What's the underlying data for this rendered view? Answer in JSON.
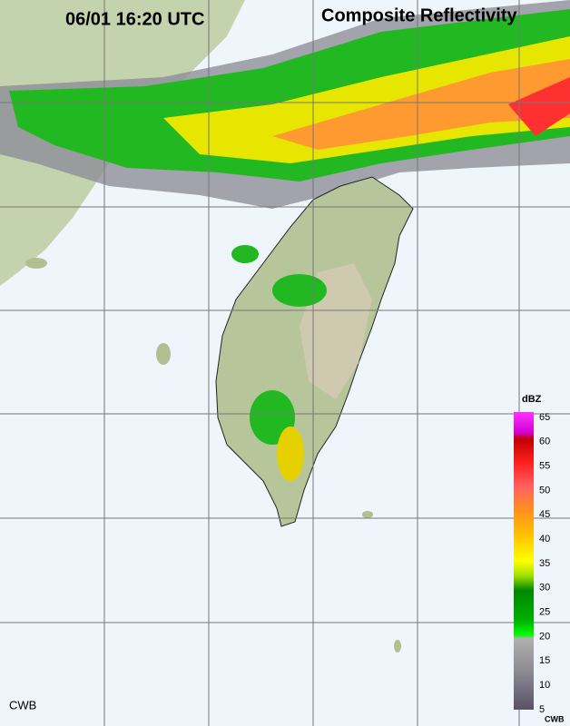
{
  "header": {
    "timestamp": "06/01 16:20 UTC",
    "title": "Composite Reflectivity"
  },
  "legend": {
    "unit": "dBZ",
    "labels": [
      "65",
      "60",
      "55",
      "50",
      "45",
      "40",
      "35",
      "30",
      "25",
      "20",
      "15",
      "10",
      "5"
    ],
    "credit": "CWB"
  },
  "footer": {
    "source": "CWB"
  }
}
